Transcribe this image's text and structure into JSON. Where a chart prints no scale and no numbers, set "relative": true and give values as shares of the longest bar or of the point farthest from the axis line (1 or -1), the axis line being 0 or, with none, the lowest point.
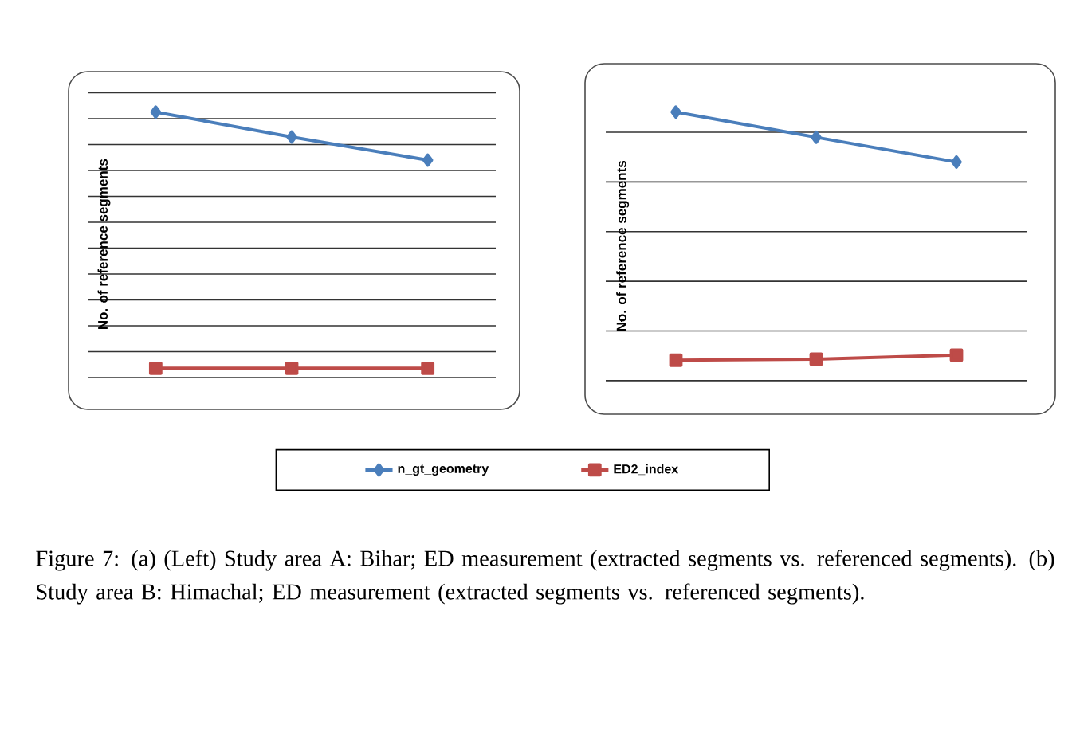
{
  "chart_data": [
    {
      "type": "line",
      "relative": true,
      "ylabel": "No. of reference segments",
      "categories": [
        null,
        null,
        null
      ],
      "grid": "y",
      "legend": "bottom",
      "series": [
        {
          "name": "n_gt_geometry",
          "color": "#4a7ebb",
          "marker": "diamond",
          "values": [
            1,
            0.906,
            0.819
          ]
        },
        {
          "name": "ED2_index",
          "color": "#be4b48",
          "marker": "square",
          "values": [
            0.035,
            0.035,
            0.035
          ]
        }
      ],
      "annotations": [
        "Figure 7: (a) (Left) Study area A: Bihar; ED measurement (extracted segments vs. referenced segments). (b) Study area B: Himachal; ED measurement (extracted segments vs. referenced segments)."
      ]
    },
    {
      "type": "line",
      "relative": true,
      "ylabel": "No. of reference segments",
      "categories": [
        null,
        null,
        null
      ],
      "grid": "y",
      "series": [
        {
          "color": "#4a7ebb",
          "marker": "diamond",
          "values": [
            1,
            0.906,
            0.814
          ]
        },
        {
          "color": "#be4b48",
          "marker": "square",
          "values": [
            0.076,
            0.08,
            0.095
          ]
        }
      ]
    }
  ]
}
